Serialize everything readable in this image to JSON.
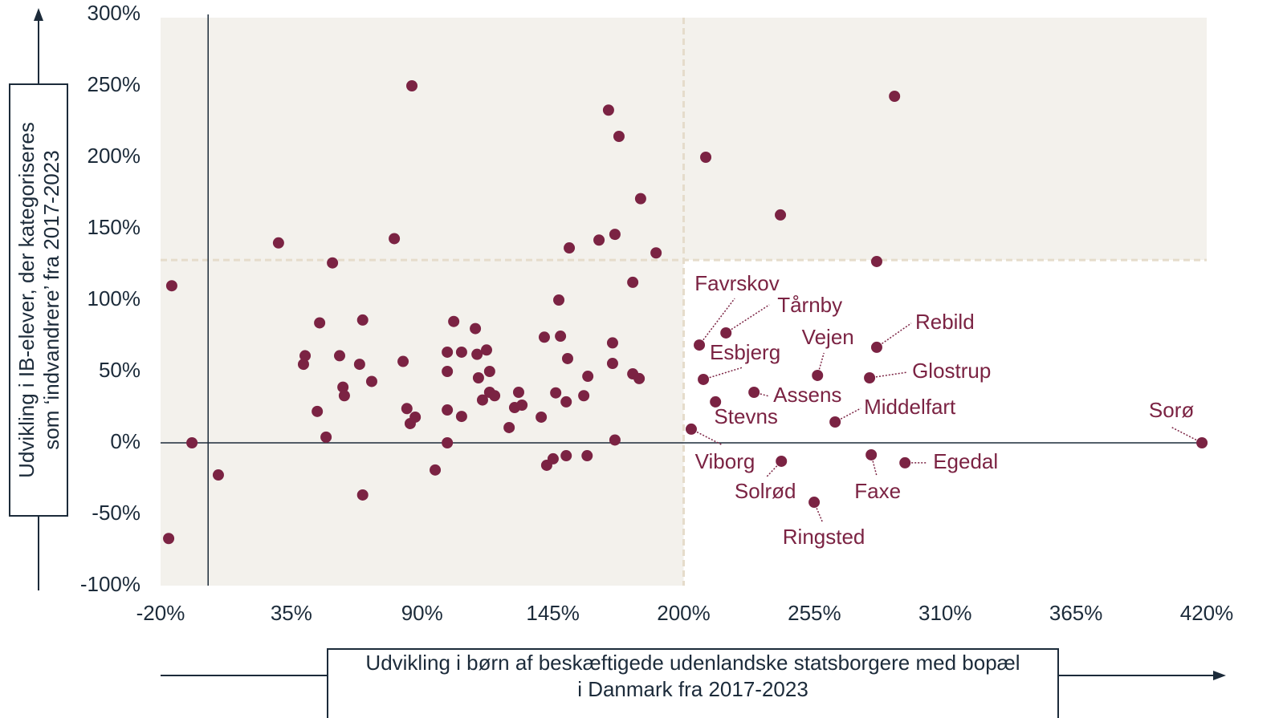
{
  "chart_data": {
    "type": "scatter",
    "x_label": [
      "Udvikling i børn af beskæftigede udenlandske statsborgere med bopæl",
      "i Danmark fra 2017-2023"
    ],
    "y_label": [
      "Udvikling i IB-elever, der kategoriseres",
      "som ‘indvandrere’ fra 2017-2023"
    ],
    "xlim": [
      -20,
      420
    ],
    "ylim": [
      -100,
      300
    ],
    "xticks": [
      {
        "value": -20,
        "label": "-20%"
      },
      {
        "value": 35,
        "label": "35%"
      },
      {
        "value": 90,
        "label": "90%"
      },
      {
        "value": 145,
        "label": "145%"
      },
      {
        "value": 200,
        "label": "200%"
      },
      {
        "value": 255,
        "label": "255%"
      },
      {
        "value": 310,
        "label": "310%"
      },
      {
        "value": 365,
        "label": "365%"
      },
      {
        "value": 420,
        "label": "420%"
      }
    ],
    "yticks": [
      {
        "value": -100,
        "label": "-100%"
      },
      {
        "value": -50,
        "label": "-50%"
      },
      {
        "value": 0,
        "label": "0%"
      },
      {
        "value": 50,
        "label": "50%"
      },
      {
        "value": 100,
        "label": "100%"
      },
      {
        "value": 150,
        "label": "150%"
      },
      {
        "value": 200,
        "label": "200%"
      },
      {
        "value": 250,
        "label": "250%"
      },
      {
        "value": 300,
        "label": "300%"
      }
    ],
    "reference_lines": {
      "x": 200,
      "y": 128
    },
    "series": [
      {
        "color": "#7b2343",
        "x": [
          -15.3,
          -16.6,
          -6.8,
          4.3,
          29.6,
          40.8,
          40.1,
          46.9,
          45.9,
          49.6,
          52.3,
          55.3,
          56.7,
          57.3,
          63.7,
          65.0,
          65.0,
          68.8,
          78.3,
          82.0,
          83.6,
          85.7,
          85.0,
          87.1,
          95.5,
          100.6,
          100.6,
          100.6,
          100.6,
          103.3,
          106.6,
          106.6,
          112.4,
          113.1,
          113.7,
          115.4,
          117.1,
          118.4,
          118.4,
          120.5,
          126.6,
          128.9,
          130.6,
          132.0,
          140.1,
          141.4,
          142.4,
          145.1,
          146.2,
          147.5,
          148.2,
          150.6,
          150.6,
          151.2,
          151.9,
          158.0,
          159.4,
          159.7,
          164.4,
          168.4,
          170.1,
          170.1,
          171.1,
          171.1,
          172.8,
          178.6,
          178.6,
          181.3,
          181.9,
          188.4,
          209.3,
          240.7,
          281.2,
          288.7,
          206.6,
          217.8,
          208.3,
          213.4,
          229.6,
          256.3,
          281.2,
          278.2,
          263.7,
          203.2,
          241.1,
          254.9,
          278.9,
          293.1,
          418
        ],
        "values": [
          110,
          -67,
          0,
          -22.5,
          140,
          61,
          55,
          84,
          22,
          4,
          126,
          61,
          39,
          33,
          55,
          86,
          -36.5,
          43,
          143,
          57,
          24,
          250,
          13.5,
          18,
          -19,
          63.5,
          50,
          23,
          0,
          85,
          63.5,
          18.5,
          80,
          62,
          45.5,
          30,
          65,
          50,
          35.4,
          33,
          10.7,
          24.7,
          35.4,
          26.4,
          18,
          74,
          -15.7,
          -11.2,
          35,
          100,
          74.7,
          -9,
          28.7,
          59,
          136.5,
          33,
          -9,
          46.6,
          142,
          233,
          70,
          55.6,
          146,
          2,
          214.6,
          112.4,
          48.3,
          45,
          171,
          133,
          200,
          159.6,
          127,
          242.7,
          68.5,
          77,
          44.4,
          28.7,
          35.4,
          47.2,
          66.9,
          45.5,
          14.6,
          9.6,
          -12.9,
          -41.6,
          -8.4,
          -14,
          0
        ],
        "labels": [
          null,
          null,
          null,
          null,
          null,
          null,
          null,
          null,
          null,
          null,
          null,
          null,
          null,
          null,
          null,
          null,
          null,
          null,
          null,
          null,
          null,
          null,
          null,
          null,
          null,
          null,
          null,
          null,
          null,
          null,
          null,
          null,
          null,
          null,
          null,
          null,
          null,
          null,
          null,
          null,
          null,
          null,
          null,
          null,
          null,
          null,
          null,
          null,
          null,
          null,
          null,
          null,
          null,
          null,
          null,
          null,
          null,
          null,
          null,
          null,
          null,
          null,
          null,
          null,
          null,
          null,
          null,
          null,
          null,
          null,
          null,
          null,
          null,
          null,
          "Favrskov",
          "Tårnby",
          "Esbjerg",
          "Stevns",
          "Assens",
          "Vejen",
          "Rebild",
          "Glostrup",
          "Middelfart",
          "Viborg",
          "Solrød",
          "Ringsted",
          "Faxe",
          "Egedal",
          "Sorø"
        ]
      }
    ]
  }
}
